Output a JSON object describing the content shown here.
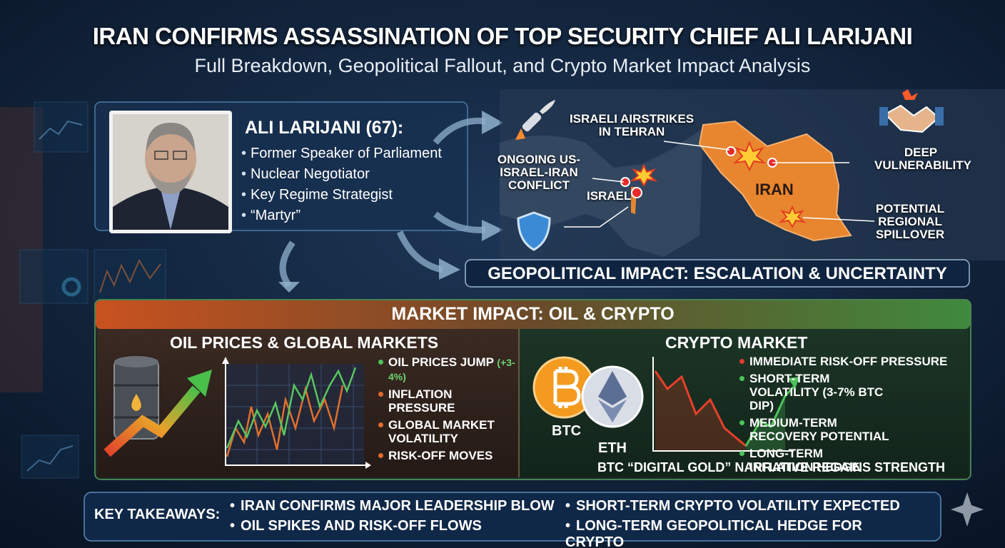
{
  "header": {
    "title": "IRAN CONFIRMS ASSASSINATION OF TOP SECURITY CHIEF ALI LARIJANI",
    "subtitle": "Full Breakdown, Geopolitical Fallout, and Crypto Market Impact Analysis"
  },
  "profile": {
    "name": "ALI LARIJANI (67):",
    "roles": [
      "Former Speaker of Parliament",
      "Nuclear Negotiator",
      "Key Regime Strategist",
      "“Martyr”"
    ]
  },
  "map": {
    "labels": {
      "airstrikes": "ISRAELI AIRSTRIKES IN TEHRAN",
      "conflict": "ONGOING US-ISRAEL-IRAN CONFLICT",
      "israel": "ISRAEL",
      "iran": "IRAN",
      "vulnerability": "DEEP VULNERABILITY",
      "spillover": "POTENTIAL REGIONAL SPILLOVER"
    }
  },
  "geopolitical_banner": "GEOPOLITICAL IMPACT: ESCALATION & UNCERTAINTY",
  "market": {
    "title": "MARKET IMPACT: OIL & CRYPTO",
    "oil": {
      "title": "OIL PRICES & GLOBAL MARKETS",
      "points": [
        "OIL PRICES JUMP",
        "INFLATION PRESSURE",
        "GLOBAL MARKET VOLATILITY",
        "RISK-OFF MOVES"
      ],
      "jump_note": "(+3-4%)"
    },
    "crypto": {
      "title": "CRYPTO MARKET",
      "coins": [
        "BTC",
        "ETH"
      ],
      "points": [
        "IMMEDIATE RISK-OFF PRESSURE",
        "SHORT-TERM VOLATILITY (3-7% BTC DIP)",
        "MEDIUM-TERM RECOVERY POTENTIAL",
        "LONG-TERM INFLATION HEDGE"
      ],
      "narrative": "BTC “DIGITAL GOLD” NARRATIVE REGAINS STRENGTH"
    }
  },
  "takeaways": {
    "label": "KEY TAKEAWAYS:",
    "items": [
      "IRAN CONFIRMS MAJOR LEADERSHIP BLOW",
      "SHORT-TERM CRYPTO VOLATILITY EXPECTED",
      "OIL SPIKES AND RISK-OFF FLOWS",
      "LONG-TERM GEOPOLITICAL HEDGE FOR CRYPTO"
    ]
  }
}
